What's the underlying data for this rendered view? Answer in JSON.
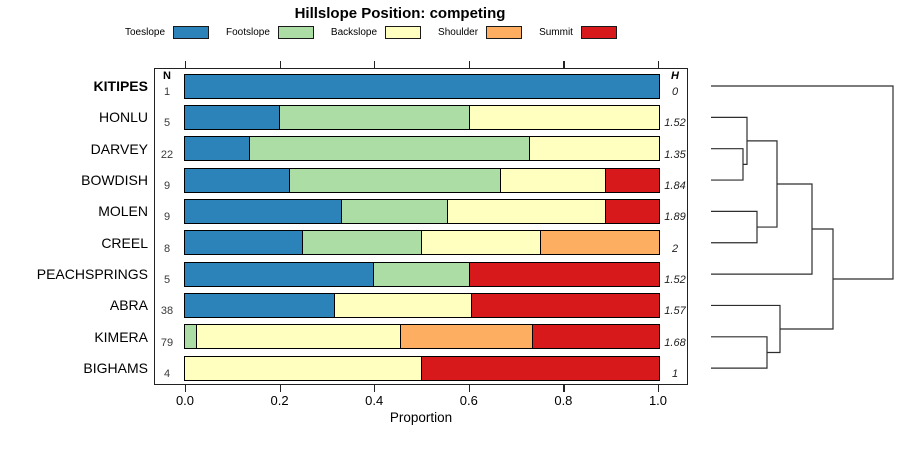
{
  "chart_data": {
    "type": "bar",
    "variant": "stacked-horizontal-proportion",
    "title": "Hillslope Position: competing",
    "xlabel": "Proportion",
    "xlim": [
      0,
      1
    ],
    "x_ticks": [
      "0.0",
      "0.2",
      "0.4",
      "0.6",
      "0.8",
      "1.0"
    ],
    "grid": false,
    "legend_position": "top",
    "series_names": [
      "Toeslope",
      "Footslope",
      "Backslope",
      "Shoulder",
      "Summit"
    ],
    "colors": {
      "Toeslope": "#2b83ba",
      "Footslope": "#abdda4",
      "Backslope": "#ffffbf",
      "Shoulder": "#fdae61",
      "Summit": "#d7191c"
    },
    "n_column": {
      "header": "N"
    },
    "h_column": {
      "header": "H"
    },
    "rows": [
      {
        "label": "KITIPES",
        "bold": true,
        "n": 1,
        "h": "0",
        "values": [
          1,
          0,
          0,
          0,
          0
        ]
      },
      {
        "label": "HONLU",
        "bold": false,
        "n": 5,
        "h": "1.52",
        "values": [
          0.2,
          0.4,
          0.4,
          0,
          0
        ]
      },
      {
        "label": "DARVEY",
        "bold": false,
        "n": 22,
        "h": "1.35",
        "values": [
          0.136,
          0.591,
          0.273,
          0,
          0
        ]
      },
      {
        "label": "BOWDISH",
        "bold": false,
        "n": 9,
        "h": "1.84",
        "values": [
          0.222,
          0.445,
          0.222,
          0,
          0.111
        ]
      },
      {
        "label": "MOLEN",
        "bold": false,
        "n": 9,
        "h": "1.89",
        "values": [
          0.333,
          0.223,
          0.333,
          0,
          0.111
        ]
      },
      {
        "label": "CREEL",
        "bold": false,
        "n": 8,
        "h": "2",
        "values": [
          0.25,
          0.25,
          0.25,
          0.25,
          0
        ]
      },
      {
        "label": "PEACHSPRINGS",
        "bold": false,
        "n": 5,
        "h": "1.52",
        "values": [
          0.4,
          0.2,
          0,
          0,
          0.4
        ]
      },
      {
        "label": "ABRA",
        "bold": false,
        "n": 38,
        "h": "1.57",
        "values": [
          0.316,
          0,
          0.289,
          0,
          0.395
        ]
      },
      {
        "label": "KIMERA",
        "bold": false,
        "n": 79,
        "h": "1.68",
        "values": [
          0,
          0.025,
          0.431,
          0.278,
          0.266
        ]
      },
      {
        "label": "BIGHAMS",
        "bold": false,
        "n": 4,
        "h": "1",
        "values": [
          0,
          0,
          0.5,
          0,
          0.5
        ]
      }
    ]
  },
  "dendrogram": {
    "leaf_start_x": 711,
    "merges": [
      {
        "children": [
          "L2",
          "L3"
        ],
        "x": 743
      },
      {
        "children": [
          "L1",
          "M0"
        ],
        "x": 747
      },
      {
        "children": [
          "L4",
          "L5"
        ],
        "x": 757
      },
      {
        "children": [
          "M1",
          "M2"
        ],
        "x": 777
      },
      {
        "children": [
          "M3",
          "L6"
        ],
        "x": 812
      },
      {
        "children": [
          "L8",
          "L9"
        ],
        "x": 767
      },
      {
        "children": [
          "L7",
          "M5"
        ],
        "x": 780
      },
      {
        "children": [
          "M4",
          "M6"
        ],
        "x": 833
      },
      {
        "children": [
          "L0",
          "M7"
        ],
        "x": 893
      }
    ]
  }
}
